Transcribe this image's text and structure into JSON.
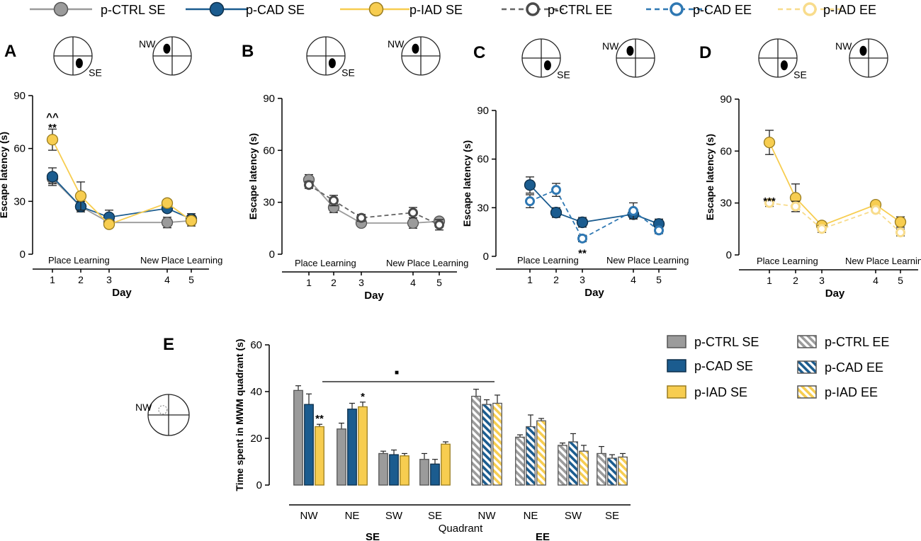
{
  "colors": {
    "ctrl": "#9b9b9b",
    "ctrl_dark": "#555555",
    "cad": "#1b5c8f",
    "cad_dark": "#0d2f4a",
    "iad": "#f7cd50",
    "iad_dark": "#9a7d20",
    "ctrl_ee_ring": "#4a4a4a",
    "cad_ee_ring": "#2f78b3",
    "iad_ee_ring": "#f8dc8c"
  },
  "legend": {
    "ctrl_se": "p-CTRL SE",
    "cad_se": "p-CAD SE",
    "iad_se": "p-IAD SE",
    "ctrl_ee": "p-CTRL EE",
    "cad_ee": "p-CAD EE",
    "iad_ee": "p-IAD EE"
  },
  "pool": {
    "se_label": "SE",
    "nw_label": "NW"
  },
  "chart_data": [
    {
      "panel": "A",
      "type": "line",
      "xlabel": "Day",
      "ylabel": "Escape latency (s)",
      "ylim": [
        0,
        90
      ],
      "yticks": [
        0,
        30,
        60,
        90
      ],
      "x": [
        1,
        2,
        3,
        4,
        5
      ],
      "xtick_labels": [
        "1",
        "2",
        "3",
        "4",
        "5"
      ],
      "phase_labels": {
        "first": "Place Learning",
        "second": "New Place Learning"
      },
      "series": [
        {
          "name": "p-CTRL SE",
          "group": "ctrl",
          "style": "solid",
          "values": [
            43,
            27,
            18,
            18,
            19
          ],
          "errors": [
            3,
            2,
            2,
            3,
            2
          ]
        },
        {
          "name": "p-CAD SE",
          "group": "cad",
          "style": "solid",
          "values": [
            44,
            27,
            21,
            26,
            20
          ],
          "errors": [
            5,
            3,
            4,
            2,
            3
          ]
        },
        {
          "name": "p-IAD SE",
          "group": "iad",
          "style": "solid",
          "values": [
            65,
            33,
            17,
            29,
            19
          ],
          "errors": [
            6,
            8,
            2,
            2,
            3
          ]
        }
      ],
      "annotations": [
        {
          "x": 1,
          "y": 72,
          "text": "**"
        },
        {
          "x": 1,
          "y": 78,
          "text": "^^"
        }
      ]
    },
    {
      "panel": "B",
      "type": "line",
      "xlabel": "Day",
      "ylabel": "Escape latency (s)",
      "ylim": [
        0,
        90
      ],
      "yticks": [
        0,
        30,
        60,
        90
      ],
      "x": [
        1,
        2,
        3,
        4,
        5
      ],
      "xtick_labels": [
        "1",
        "2",
        "3",
        "4",
        "5"
      ],
      "phase_labels": {
        "first": "Place Learning",
        "second": "New Place Learning"
      },
      "series": [
        {
          "name": "p-CTRL SE",
          "group": "ctrl",
          "style": "solid",
          "values": [
            43,
            27,
            18,
            18,
            19
          ],
          "errors": [
            3,
            3,
            2,
            3,
            2
          ]
        },
        {
          "name": "p-CTRL EE",
          "group": "ctrl",
          "style": "dashed",
          "values": [
            40,
            31,
            21,
            24,
            17
          ],
          "errors": [
            2,
            3,
            2,
            3,
            3
          ]
        }
      ],
      "annotations": []
    },
    {
      "panel": "C",
      "type": "line",
      "xlabel": "Day",
      "ylabel": "Escape latency (s)",
      "ylim": [
        0,
        90
      ],
      "yticks": [
        0,
        30,
        60,
        90
      ],
      "x": [
        1,
        2,
        3,
        4,
        5
      ],
      "xtick_labels": [
        "1",
        "2",
        "3",
        "4",
        "5"
      ],
      "phase_labels": {
        "first": "Place Learning",
        "second": "New Place Learning"
      },
      "series": [
        {
          "name": "p-CAD SE",
          "group": "cad",
          "style": "solid",
          "values": [
            44,
            27,
            21,
            26,
            20
          ],
          "errors": [
            5,
            3,
            3,
            2,
            3
          ]
        },
        {
          "name": "p-CAD EE",
          "group": "cad",
          "style": "dashed",
          "values": [
            34,
            41,
            11,
            28,
            16
          ],
          "errors": [
            4,
            4,
            2,
            5,
            2
          ]
        }
      ],
      "annotations": [
        {
          "x": 3,
          "y": 2,
          "text": "**"
        }
      ]
    },
    {
      "panel": "D",
      "type": "line",
      "xlabel": "Day",
      "ylabel": "Escape latency (s)",
      "ylim": [
        0,
        90
      ],
      "yticks": [
        0,
        30,
        60,
        90
      ],
      "x": [
        1,
        2,
        3,
        4,
        5
      ],
      "xtick_labels": [
        "1",
        "2",
        "3",
        "4",
        "5"
      ],
      "phase_labels": {
        "first": "Place Learning",
        "second": "New Place Learning"
      },
      "series": [
        {
          "name": "p-IAD SE",
          "group": "iad",
          "style": "solid",
          "values": [
            65,
            33,
            17,
            29,
            19
          ],
          "errors": [
            7,
            8,
            2,
            2,
            3
          ]
        },
        {
          "name": "p-IAD EE",
          "group": "iad",
          "style": "dashed",
          "values": [
            30,
            28,
            15,
            26,
            13
          ],
          "errors": [
            2,
            3,
            2,
            1,
            2
          ]
        }
      ],
      "annotations": [
        {
          "x": 1,
          "y": 31,
          "text": "***"
        }
      ]
    },
    {
      "panel": "E",
      "type": "bar",
      "ylabel": "Time spent in MWM quadrant (s)",
      "xlabel": "Quadrant",
      "ylim": [
        0,
        60
      ],
      "yticks": [
        0,
        20,
        40,
        60
      ],
      "groups": [
        {
          "label": "SE",
          "categories": [
            "NW",
            "NE",
            "SW",
            "SE"
          ]
        },
        {
          "label": "EE",
          "categories": [
            "NW",
            "NE",
            "SW",
            "SE"
          ]
        }
      ],
      "series": [
        {
          "name": "p-CTRL SE",
          "group": "ctrl",
          "hatched": false,
          "condition": "SE",
          "values": [
            40.5,
            24,
            13.5,
            11
          ],
          "errors": [
            2,
            2.5,
            1,
            2.5
          ]
        },
        {
          "name": "p-CAD SE",
          "group": "cad",
          "hatched": false,
          "condition": "SE",
          "values": [
            34.5,
            32.5,
            13,
            9
          ],
          "errors": [
            4.5,
            2.5,
            2,
            2
          ]
        },
        {
          "name": "p-IAD SE",
          "group": "iad",
          "hatched": false,
          "condition": "SE",
          "values": [
            25,
            33.5,
            12.5,
            17.5
          ],
          "errors": [
            1,
            2,
            1,
            1
          ]
        },
        {
          "name": "p-CTRL EE",
          "group": "ctrl",
          "hatched": true,
          "condition": "EE",
          "values": [
            38,
            20.5,
            17,
            13.5
          ],
          "errors": [
            3,
            1,
            1,
            3
          ]
        },
        {
          "name": "p-CAD EE",
          "group": "cad",
          "hatched": true,
          "condition": "EE",
          "values": [
            34.5,
            25,
            18.5,
            11.5
          ],
          "errors": [
            2,
            5,
            3.5,
            1.5
          ]
        },
        {
          "name": "p-IAD EE",
          "group": "iad",
          "hatched": true,
          "condition": "EE",
          "values": [
            35,
            27.5,
            14.5,
            12
          ],
          "errors": [
            3.5,
            1,
            2.5,
            1.5
          ]
        }
      ],
      "annotations": [
        {
          "series": "p-IAD SE",
          "category": 0,
          "text": "**"
        },
        {
          "series": "p-IAD SE",
          "category": 1,
          "text": "*"
        },
        {
          "type": "bracket",
          "from_group": 0,
          "to_group": 1,
          "y": 49,
          "text": "■"
        }
      ]
    }
  ]
}
